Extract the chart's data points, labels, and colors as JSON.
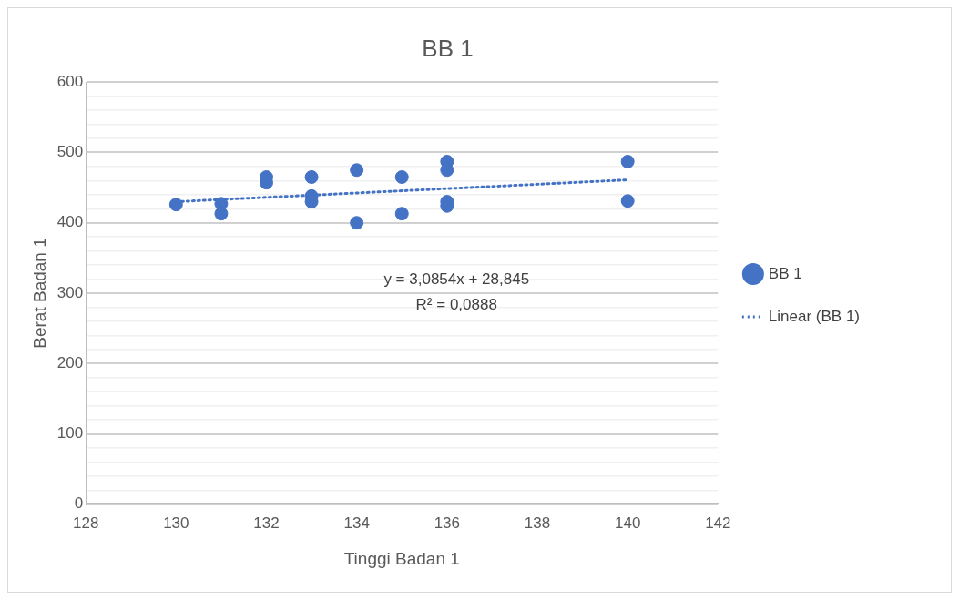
{
  "chart_data": {
    "type": "scatter",
    "title": "BB 1",
    "xlabel": "Tinggi Badan 1",
    "ylabel": "Berat Badan 1",
    "xlim": [
      128,
      142
    ],
    "xticks": [
      128,
      130,
      132,
      134,
      136,
      138,
      140,
      142
    ],
    "ylim": [
      0,
      600
    ],
    "yticks": [
      0,
      {
        "value": 20,
        "label": null
      },
      {
        "value": 40,
        "label": null
      },
      {
        "value": 60,
        "label": null
      },
      {
        "value": 80,
        "label": null
      },
      100,
      {
        "value": 120,
        "label": null
      },
      {
        "value": 140,
        "label": null
      },
      {
        "value": 160,
        "label": null
      },
      {
        "value": 180,
        "label": null
      },
      200,
      {
        "value": 220,
        "label": null
      },
      {
        "value": 240,
        "label": null
      },
      {
        "value": 260,
        "label": null
      },
      {
        "value": 280,
        "label": null
      },
      300,
      {
        "value": 320,
        "label": null
      },
      {
        "value": 340,
        "label": null
      },
      {
        "value": 360,
        "label": null
      },
      {
        "value": 380,
        "label": null
      },
      400,
      {
        "value": 420,
        "label": null
      },
      {
        "value": 440,
        "label": null
      },
      {
        "value": 460,
        "label": null
      },
      {
        "value": 480,
        "label": null
      },
      500,
      {
        "value": 520,
        "label": null
      },
      {
        "value": 540,
        "label": null
      },
      {
        "value": 560,
        "label": null
      },
      {
        "value": 580,
        "label": null
      },
      600
    ],
    "grid": "y",
    "legend": "right",
    "series": [
      {
        "name": "BB 1",
        "color": "#4472c4",
        "marker": "circle",
        "x": [
          130,
          131,
          131,
          132,
          132,
          133,
          133,
          133,
          134,
          134,
          135,
          135,
          136,
          136,
          136,
          136,
          140,
          140
        ],
        "values": [
          426,
          427,
          413,
          465,
          457,
          465,
          438,
          430,
          475,
          400,
          465,
          413,
          487,
          475,
          430,
          424,
          487,
          431
        ]
      },
      {
        "name": "Linear (BB 1)",
        "type": "line",
        "color": "#4472c4",
        "marker": "none",
        "line_style": "dotted",
        "x": [
          130,
          140
        ],
        "values": [
          430,
          461
        ]
      }
    ],
    "annotations": [
      "y = 3,0854x + 28,845",
      "R² = 0,0888"
    ]
  }
}
